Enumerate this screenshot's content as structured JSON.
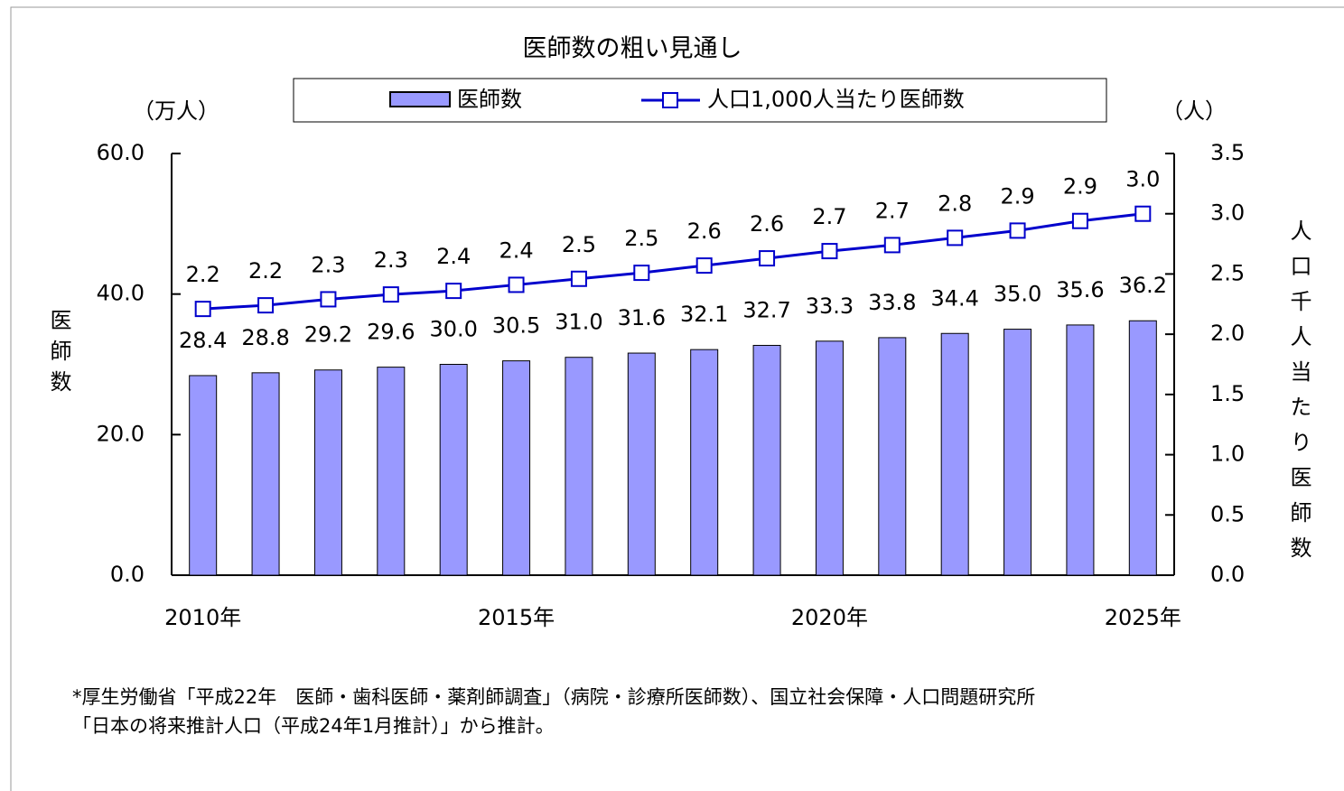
{
  "chart_data": {
    "type": "bar-line",
    "title": "医師数の粗い見通し",
    "y_unit": "（万人）",
    "y2_unit": "（人）",
    "ylabel": "医師数",
    "y2label": "人口千人当たり医師数",
    "categories": [
      "2010年",
      null,
      null,
      null,
      null,
      "2015年",
      null,
      null,
      null,
      null,
      "2020年",
      null,
      null,
      null,
      null,
      "2025年"
    ],
    "series": [
      {
        "name": "医師数",
        "type": "bar",
        "color": "#9999ff",
        "values": [
          28.4,
          28.8,
          29.2,
          29.6,
          30.0,
          30.5,
          31.0,
          31.6,
          32.1,
          32.7,
          33.3,
          33.8,
          34.4,
          35.0,
          35.6,
          36.2
        ],
        "value_labels": [
          "28.4",
          "28.8",
          "29.2",
          "29.6",
          "30.0",
          "30.5",
          "31.0",
          "31.6",
          "32.1",
          "32.7",
          "33.3",
          "33.8",
          "34.4",
          "35.0",
          "35.6",
          "36.2"
        ]
      },
      {
        "name": "人口1,000人当たり医師数",
        "type": "line",
        "axis": "y2",
        "color": "#0000cc",
        "values": [
          2.21,
          2.24,
          2.29,
          2.33,
          2.36,
          2.41,
          2.46,
          2.51,
          2.57,
          2.63,
          2.69,
          2.74,
          2.8,
          2.86,
          2.94,
          3.0
        ],
        "value_labels": [
          "2.2",
          "2.2",
          "2.3",
          "2.3",
          "2.4",
          "2.4",
          "2.5",
          "2.5",
          "2.6",
          "2.6",
          "2.7",
          "2.7",
          "2.8",
          "2.9",
          "2.9",
          "3.0"
        ]
      }
    ],
    "ylim": [
      0,
      60
    ],
    "yticks": [
      {
        "value": 0,
        "label": "0.0"
      },
      {
        "value": 20,
        "label": "20.0"
      },
      {
        "value": 40,
        "label": "40.0"
      },
      {
        "value": 60,
        "label": "60.0"
      }
    ],
    "y2lim": [
      0,
      3.5
    ],
    "y2ticks": [
      {
        "value": 0,
        "label": "0.0"
      },
      0.5,
      {
        "value": 1,
        "label": "1.0"
      },
      1.5,
      {
        "value": 2,
        "label": "2.0"
      },
      2.5,
      {
        "value": 3,
        "label": "3.0"
      },
      3.5
    ],
    "grid": false,
    "legend": "top",
    "note": [
      "*厚生労働省「平成22年　医師・歯科医師・薬剤師調査」（病院・診療所医師数）、国立社会保障・人口問題研究所",
      "「日本の将来推計人口（平成24年1月推計）」から推計。"
    ]
  }
}
